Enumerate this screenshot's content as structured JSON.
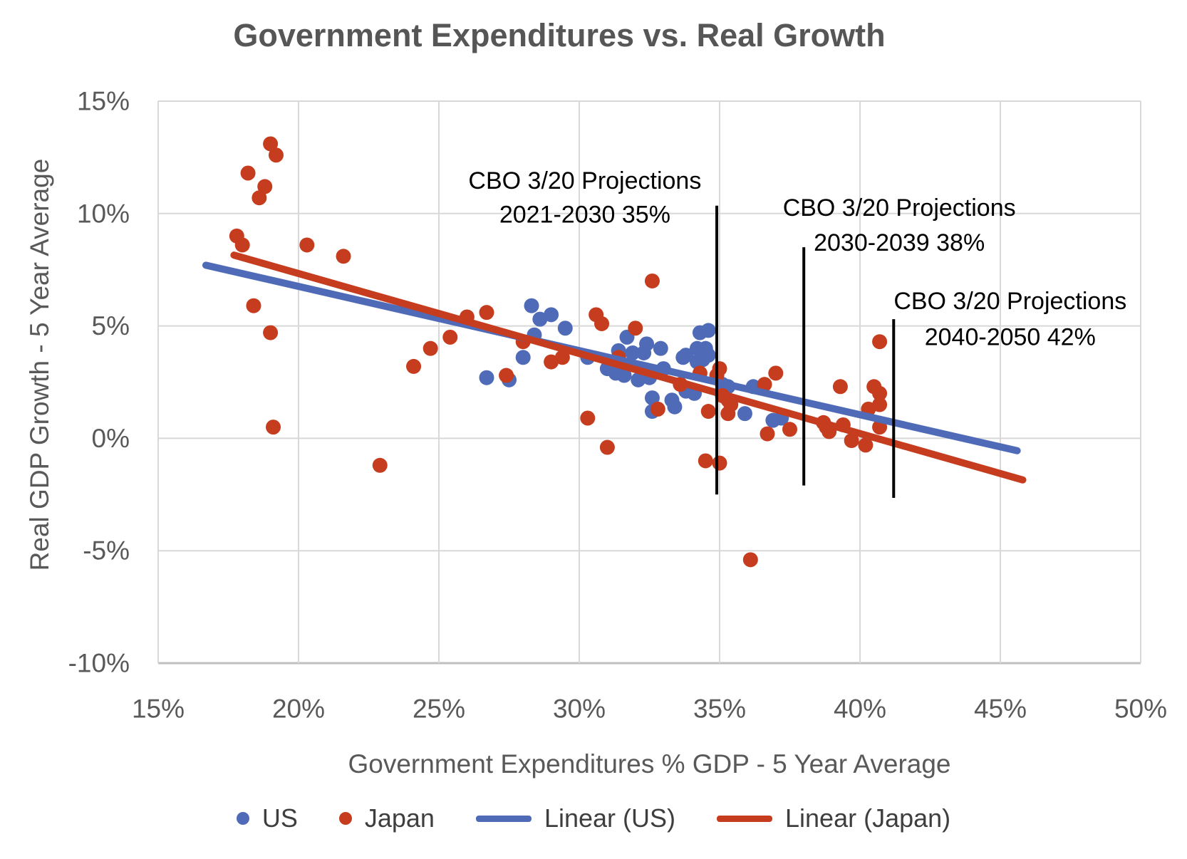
{
  "chart_data": {
    "type": "scatter",
    "title": "Government Expenditures vs. Real Growth",
    "xlabel": "Government Expenditures % GDP - 5 Year Average",
    "ylabel": "Real GDP Growth - 5 Year Average",
    "x_range": [
      15,
      50
    ],
    "y_range": [
      -10,
      15
    ],
    "x_ticks": [
      15,
      20,
      25,
      30,
      35,
      40,
      45,
      50
    ],
    "x_tick_labels": [
      "15%",
      "20%",
      "25%",
      "30%",
      "35%",
      "40%",
      "45%",
      "50%"
    ],
    "y_ticks": [
      15,
      10,
      5,
      0,
      -5,
      -10
    ],
    "y_tick_labels": [
      "15%",
      "10%",
      "5%",
      "0%",
      "-5%",
      "-10%"
    ],
    "grid": true,
    "legend_position": "bottom",
    "colors": {
      "us": "#4F6BB8",
      "japan": "#C63C1E",
      "gridline": "#D8D8D8",
      "axis_line": "#BFBFBF",
      "text": "#595959",
      "annotation": "#000000"
    },
    "series": [
      {
        "name": "US",
        "type": "scatter",
        "color": "#4F6BB8",
        "points": [
          [
            26.7,
            2.7
          ],
          [
            27.5,
            2.6
          ],
          [
            28.0,
            3.6
          ],
          [
            28.3,
            5.9
          ],
          [
            28.6,
            5.3
          ],
          [
            29.0,
            5.5
          ],
          [
            28.4,
            4.6
          ],
          [
            29.5,
            4.9
          ],
          [
            30.3,
            3.6
          ],
          [
            31.0,
            3.1
          ],
          [
            31.3,
            2.9
          ],
          [
            31.6,
            2.8
          ],
          [
            31.4,
            3.9
          ],
          [
            31.7,
            4.5
          ],
          [
            31.9,
            3.8
          ],
          [
            32.1,
            2.6
          ],
          [
            32.3,
            3.8
          ],
          [
            32.4,
            4.2
          ],
          [
            32.5,
            2.7
          ],
          [
            32.6,
            1.8
          ],
          [
            32.6,
            1.2
          ],
          [
            32.9,
            4.0
          ],
          [
            33.0,
            3.1
          ],
          [
            33.3,
            1.7
          ],
          [
            33.4,
            1.4
          ],
          [
            33.8,
            3.7
          ],
          [
            33.8,
            2.1
          ],
          [
            34.1,
            2.0
          ],
          [
            34.2,
            4.0
          ],
          [
            34.2,
            3.4
          ],
          [
            34.3,
            4.7
          ],
          [
            34.4,
            3.5
          ],
          [
            34.5,
            4.0
          ],
          [
            34.6,
            4.8
          ],
          [
            34.6,
            3.7
          ],
          [
            33.7,
            3.6
          ],
          [
            35.1,
            2.4
          ],
          [
            35.3,
            2.3
          ],
          [
            35.9,
            1.1
          ],
          [
            36.2,
            2.3
          ],
          [
            36.9,
            0.8
          ],
          [
            37.2,
            0.9
          ]
        ]
      },
      {
        "name": "Japan",
        "type": "scatter",
        "color": "#C63C1E",
        "points": [
          [
            17.8,
            9.0
          ],
          [
            18.0,
            8.6
          ],
          [
            18.2,
            11.8
          ],
          [
            18.4,
            5.9
          ],
          [
            18.6,
            10.7
          ],
          [
            18.8,
            11.2
          ],
          [
            19.0,
            13.1
          ],
          [
            19.2,
            12.6
          ],
          [
            19.0,
            4.7
          ],
          [
            19.1,
            0.5
          ],
          [
            20.3,
            8.6
          ],
          [
            21.6,
            8.1
          ],
          [
            22.9,
            -1.2
          ],
          [
            24.1,
            3.2
          ],
          [
            24.7,
            4.0
          ],
          [
            25.4,
            4.5
          ],
          [
            26.0,
            5.4
          ],
          [
            26.7,
            5.6
          ],
          [
            27.4,
            2.8
          ],
          [
            28.0,
            4.3
          ],
          [
            29.0,
            3.4
          ],
          [
            29.4,
            3.6
          ],
          [
            30.3,
            0.9
          ],
          [
            30.6,
            5.5
          ],
          [
            30.8,
            5.1
          ],
          [
            31.0,
            -0.4
          ],
          [
            31.4,
            3.6
          ],
          [
            32.0,
            4.9
          ],
          [
            32.6,
            7.0
          ],
          [
            32.8,
            1.3
          ],
          [
            33.6,
            2.4
          ],
          [
            34.3,
            2.9
          ],
          [
            34.6,
            1.2
          ],
          [
            34.9,
            2.8
          ],
          [
            35.0,
            3.1
          ],
          [
            35.1,
            1.9
          ],
          [
            35.3,
            1.7
          ],
          [
            35.4,
            1.5
          ],
          [
            35.3,
            1.1
          ],
          [
            34.5,
            -1.0
          ],
          [
            35.0,
            -1.1
          ],
          [
            36.1,
            -5.4
          ],
          [
            36.6,
            2.4
          ],
          [
            37.0,
            2.9
          ],
          [
            36.7,
            0.2
          ],
          [
            37.5,
            0.4
          ],
          [
            38.7,
            0.7
          ],
          [
            38.8,
            0.5
          ],
          [
            38.9,
            0.3
          ],
          [
            39.3,
            2.3
          ],
          [
            39.4,
            0.6
          ],
          [
            39.7,
            -0.1
          ],
          [
            40.2,
            -0.3
          ],
          [
            40.3,
            1.3
          ],
          [
            40.5,
            2.3
          ],
          [
            40.7,
            2.0
          ],
          [
            40.7,
            1.5
          ],
          [
            40.7,
            0.5
          ],
          [
            40.7,
            4.3
          ]
        ]
      },
      {
        "name": "Linear (US)",
        "type": "trendline",
        "color": "#4F6BB8",
        "points": [
          [
            16.7,
            7.7
          ],
          [
            45.6,
            -0.55
          ]
        ]
      },
      {
        "name": "Linear (Japan)",
        "type": "trendline",
        "color": "#C63C1E",
        "points": [
          [
            17.7,
            8.15
          ],
          [
            45.8,
            -1.85
          ]
        ]
      }
    ],
    "annotations": [
      {
        "text_line1": "CBO 3/20 Projections",
        "text_line2": "2021-2030 35%",
        "label_x": 30.2,
        "label_y1": 11.45,
        "label_y2": 9.95,
        "marker_x": 34.9,
        "marker_y_top": 10.35,
        "marker_y_bottom": -2.5
      },
      {
        "text_line1": "CBO 3/20 Projections",
        "text_line2": "2030-2039 38%",
        "label_x": 41.4,
        "label_y1": 10.25,
        "label_y2": 8.7,
        "marker_x": 38.0,
        "marker_y_top": 8.5,
        "marker_y_bottom": -2.1
      },
      {
        "text_line1": "CBO 3/20 Projections",
        "text_line2": "2040-2050 42%",
        "label_x": 45.35,
        "label_y1": 6.1,
        "label_y2": 4.5,
        "marker_x": 41.2,
        "marker_y_top": 5.3,
        "marker_y_bottom": -2.65
      }
    ]
  }
}
